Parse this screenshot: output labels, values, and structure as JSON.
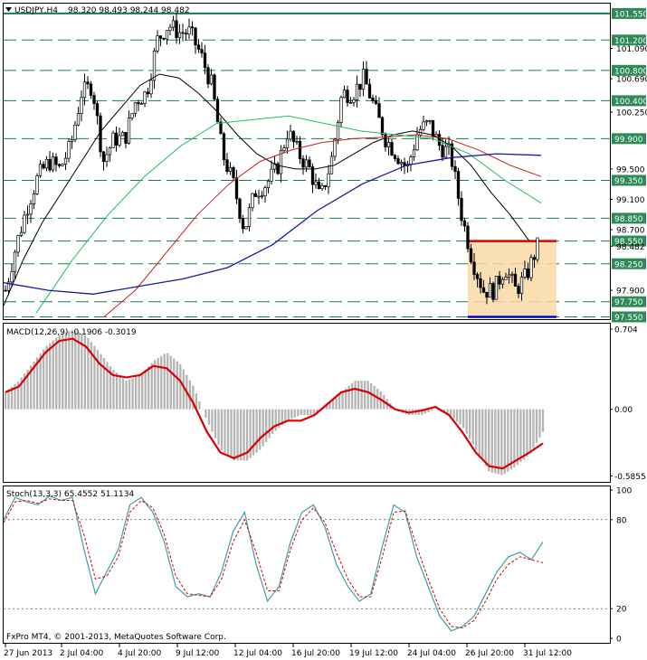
{
  "window": {
    "title": "USDJPY,H4",
    "ohlc": "98.320 98.493 98.244 98.482",
    "footer": "FxPro MT4, © 2001-2013, MetaQuotes Software Corp."
  },
  "colors": {
    "level_line": "#1a7a55",
    "level_tag": "#2e8b57",
    "sma_fast": "#000000",
    "sma_mid": "#c81e1e",
    "sma_green": "#20c060",
    "sma_slow": "#1a1aa0",
    "range_fill": "#f9d9a6",
    "range_top": "#e00000",
    "range_bottom": "#0000cc",
    "macd_hist": "#b4b4b4",
    "macd_signal": "#dd0000",
    "stoch_main": "#3ca0a8",
    "stoch_signal": "#dd0000"
  },
  "chart_data": [
    {
      "type": "line",
      "panel": "price",
      "symbol": "USDJPY,H4",
      "ylim": [
        97.52,
        101.68
      ],
      "y_tick_labels": [
        "101.090",
        "100.690",
        "100.250",
        "99.500",
        "99.100",
        "98.700",
        "98.482",
        "97.900"
      ],
      "levels": [
        {
          "value": 101.55,
          "label": "101.550"
        },
        {
          "value": 101.2,
          "label": "101.200"
        },
        {
          "value": 100.8,
          "label": "100.800"
        },
        {
          "value": 100.4,
          "label": "100.400"
        },
        {
          "value": 99.9,
          "label": "99.900"
        },
        {
          "value": 99.35,
          "label": "99.350"
        },
        {
          "value": 98.85,
          "label": "98.850"
        },
        {
          "value": 98.55,
          "label": "98.550"
        },
        {
          "value": 98.25,
          "label": "98.250"
        },
        {
          "value": 97.75,
          "label": "97.750"
        },
        {
          "value": 97.55,
          "label": "97.550"
        }
      ],
      "range_box": {
        "top": 98.55,
        "bottom": 97.55
      },
      "x_labels": [
        "27 Jun 2013",
        "2 Jul 04:00",
        "4 Jul 20:00",
        "9 Jul 12:00",
        "12 Jul 04:00",
        "16 Jul 20:00",
        "19 Jul 12:00",
        "24 Jul 04:00",
        "26 Jul 20:00",
        "31 Jul 12:00"
      ],
      "close_path": [
        97.9,
        98.5,
        99.0,
        99.4,
        99.6,
        99.5,
        99.8,
        100.5,
        100.6,
        99.6,
        99.9,
        99.9,
        100.4,
        100.5,
        101.2,
        101.4,
        101.3,
        101.3,
        101.0,
        100.6,
        99.7,
        99.3,
        98.7,
        99.2,
        99.3,
        99.5,
        100.0,
        99.7,
        99.5,
        99.1,
        99.6,
        100.5,
        100.5,
        100.7,
        100.3,
        99.9,
        99.7,
        99.5,
        100.0,
        100.1,
        99.8,
        99.7,
        98.9,
        98.3,
        97.9,
        97.9,
        98.2,
        97.9,
        98.1,
        98.48
      ],
      "sma_fast": [
        97.7,
        98.3,
        98.8,
        99.2,
        99.6,
        100.0,
        100.3,
        100.6,
        100.75,
        100.7,
        100.5,
        100.25,
        99.95,
        99.7,
        99.55,
        99.5,
        99.5,
        99.55,
        99.7,
        99.85,
        99.95,
        100.0,
        99.95,
        99.8,
        99.55,
        99.2,
        98.9,
        98.55
      ]
    },
    {
      "type": "bar",
      "panel": "macd",
      "title": "MACD(12,26,9) -0.1906 -0.3019",
      "ylim": [
        -0.63,
        0.72
      ],
      "y_tick_labels": [
        "0.704",
        "0.00",
        "-0.5855"
      ],
      "histogram": [
        0.15,
        0.25,
        0.4,
        0.55,
        0.65,
        0.7,
        0.65,
        0.5,
        0.35,
        0.25,
        0.3,
        0.42,
        0.5,
        0.4,
        0.2,
        -0.1,
        -0.35,
        -0.45,
        -0.45,
        -0.35,
        -0.2,
        -0.1,
        -0.05,
        -0.05,
        0.05,
        0.15,
        0.25,
        0.25,
        0.15,
        0.0,
        -0.05,
        -0.05,
        0.0,
        -0.05,
        -0.15,
        -0.35,
        -0.55,
        -0.58,
        -0.5,
        -0.4,
        -0.2
      ],
      "signal": [
        0.15,
        0.2,
        0.35,
        0.5,
        0.6,
        0.62,
        0.55,
        0.4,
        0.3,
        0.28,
        0.3,
        0.38,
        0.36,
        0.25,
        0.05,
        -0.2,
        -0.38,
        -0.43,
        -0.38,
        -0.25,
        -0.15,
        -0.1,
        -0.1,
        -0.05,
        0.05,
        0.15,
        0.18,
        0.15,
        0.08,
        0.0,
        -0.03,
        -0.01,
        0.02,
        -0.05,
        -0.2,
        -0.38,
        -0.5,
        -0.52,
        -0.45,
        -0.38,
        -0.3
      ]
    },
    {
      "type": "line",
      "panel": "stochastic",
      "title": "Stoch(13,3,3) 65.4552 51.1134",
      "ylim": [
        0,
        100
      ],
      "y_tick_labels": [
        "100",
        "80",
        "20",
        "0"
      ],
      "main": [
        80,
        95,
        92,
        90,
        96,
        93,
        95,
        60,
        30,
        45,
        60,
        90,
        95,
        85,
        65,
        35,
        28,
        30,
        28,
        45,
        72,
        85,
        50,
        25,
        35,
        65,
        85,
        90,
        75,
        50,
        35,
        25,
        30,
        62,
        90,
        85,
        55,
        35,
        15,
        5,
        8,
        15,
        30,
        45,
        55,
        58,
        53,
        65
      ],
      "signal": [
        78,
        92,
        93,
        91,
        94,
        93,
        93,
        70,
        40,
        42,
        55,
        85,
        93,
        88,
        70,
        42,
        30,
        29,
        28,
        40,
        65,
        80,
        58,
        32,
        32,
        60,
        80,
        88,
        78,
        58,
        40,
        28,
        28,
        55,
        85,
        86,
        62,
        40,
        20,
        8,
        7,
        12,
        25,
        40,
        50,
        55,
        53,
        51
      ]
    }
  ]
}
